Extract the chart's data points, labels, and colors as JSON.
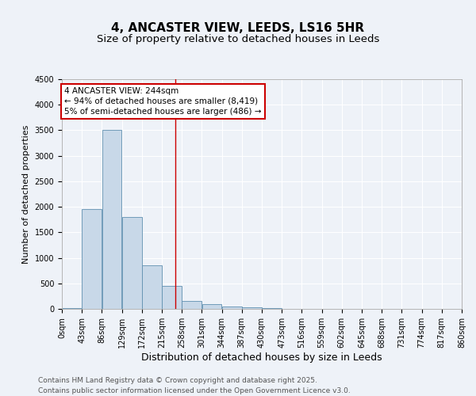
{
  "title": "4, ANCASTER VIEW, LEEDS, LS16 5HR",
  "subtitle": "Size of property relative to detached houses in Leeds",
  "xlabel": "Distribution of detached houses by size in Leeds",
  "ylabel": "Number of detached properties",
  "bar_edges": [
    0,
    43,
    86,
    129,
    172,
    215,
    258,
    301,
    344,
    387,
    430,
    473,
    516,
    559,
    602,
    645,
    688,
    731,
    774,
    817,
    860
  ],
  "bar_values": [
    20,
    1950,
    3500,
    1800,
    850,
    450,
    155,
    90,
    50,
    30,
    15,
    5,
    0,
    0,
    0,
    0,
    0,
    0,
    0,
    0
  ],
  "bar_color": "#c8d8e8",
  "bar_edgecolor": "#6090b0",
  "vline_x": 244,
  "vline_color": "#cc0000",
  "annotation_line1": "4 ANCASTER VIEW: 244sqm",
  "annotation_line2": "← 94% of detached houses are smaller (8,419)",
  "annotation_line3": "5% of semi-detached houses are larger (486) →",
  "annotation_box_color": "#ffffff",
  "annotation_box_edgecolor": "#cc0000",
  "annotation_fontsize": 7.5,
  "ylim": [
    0,
    4500
  ],
  "yticks": [
    0,
    500,
    1000,
    1500,
    2000,
    2500,
    3000,
    3500,
    4000,
    4500
  ],
  "background_color": "#eef2f8",
  "grid_color": "#ffffff",
  "title_fontsize": 11,
  "subtitle_fontsize": 9.5,
  "xlabel_fontsize": 9,
  "ylabel_fontsize": 8,
  "tick_fontsize": 7,
  "footer_text": "Contains HM Land Registry data © Crown copyright and database right 2025.\nContains public sector information licensed under the Open Government Licence v3.0.",
  "footer_fontsize": 6.5
}
